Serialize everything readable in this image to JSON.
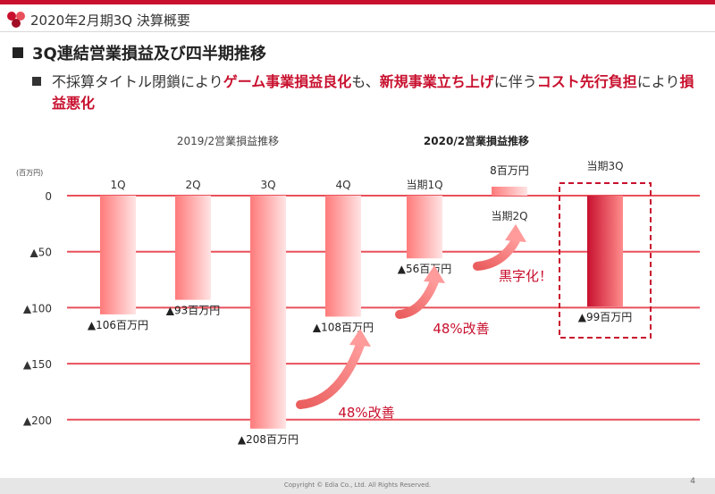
{
  "deck_title": "2020年2月期3Q 決算概要",
  "section_title": "3Q連結営業損益及び四半期推移",
  "bullet": {
    "p1": "不採算タイトル閉鎖により",
    "h1": "ゲーム事業損益良化",
    "p2": "も、",
    "h2": "新規事業立ち上げ",
    "p3": "に伴う",
    "h3": "コスト先行負担",
    "p4": "により",
    "h4": "損益悪化"
  },
  "colors": {
    "accent": "#c8102e",
    "bar_light": "#ff8a8a",
    "bar_dark": "#c8102e",
    "gridline": "#e8505b"
  },
  "chart_data": {
    "type": "bar",
    "unit_label": "(百万円)",
    "group_labels": [
      "2019/2営業損益推移",
      "2020/2営業損益推移"
    ],
    "categories": [
      "1Q",
      "2Q",
      "3Q",
      "4Q",
      "当期1Q",
      "当期2Q",
      "当期3Q"
    ],
    "values": [
      -106,
      -93,
      -208,
      -108,
      -56,
      8,
      -99
    ],
    "value_labels": [
      "▲106百万円",
      "▲93百万円",
      "▲208百万円",
      "▲108百万円",
      "▲56百万円",
      "8百万円",
      "▲99百万円"
    ],
    "yticks": [
      0,
      -50,
      -100,
      -150,
      -200
    ],
    "ytick_labels": [
      "0",
      "▲50",
      "▲100",
      "▲150",
      "▲200"
    ],
    "ylim": [
      -208,
      8
    ],
    "highlight_category": "当期3Q",
    "annotations": [
      {
        "text": "48%改善",
        "from": "3Q",
        "to": "4Q"
      },
      {
        "text": "48%改善",
        "from": "4Q",
        "to": "当期1Q"
      },
      {
        "text": "黒字化！",
        "from": "当期1Q",
        "to": "当期2Q"
      }
    ]
  },
  "footer": {
    "copyright": "Copyright © Edia Co., Ltd. All Rights Reserved.",
    "page": "4"
  }
}
